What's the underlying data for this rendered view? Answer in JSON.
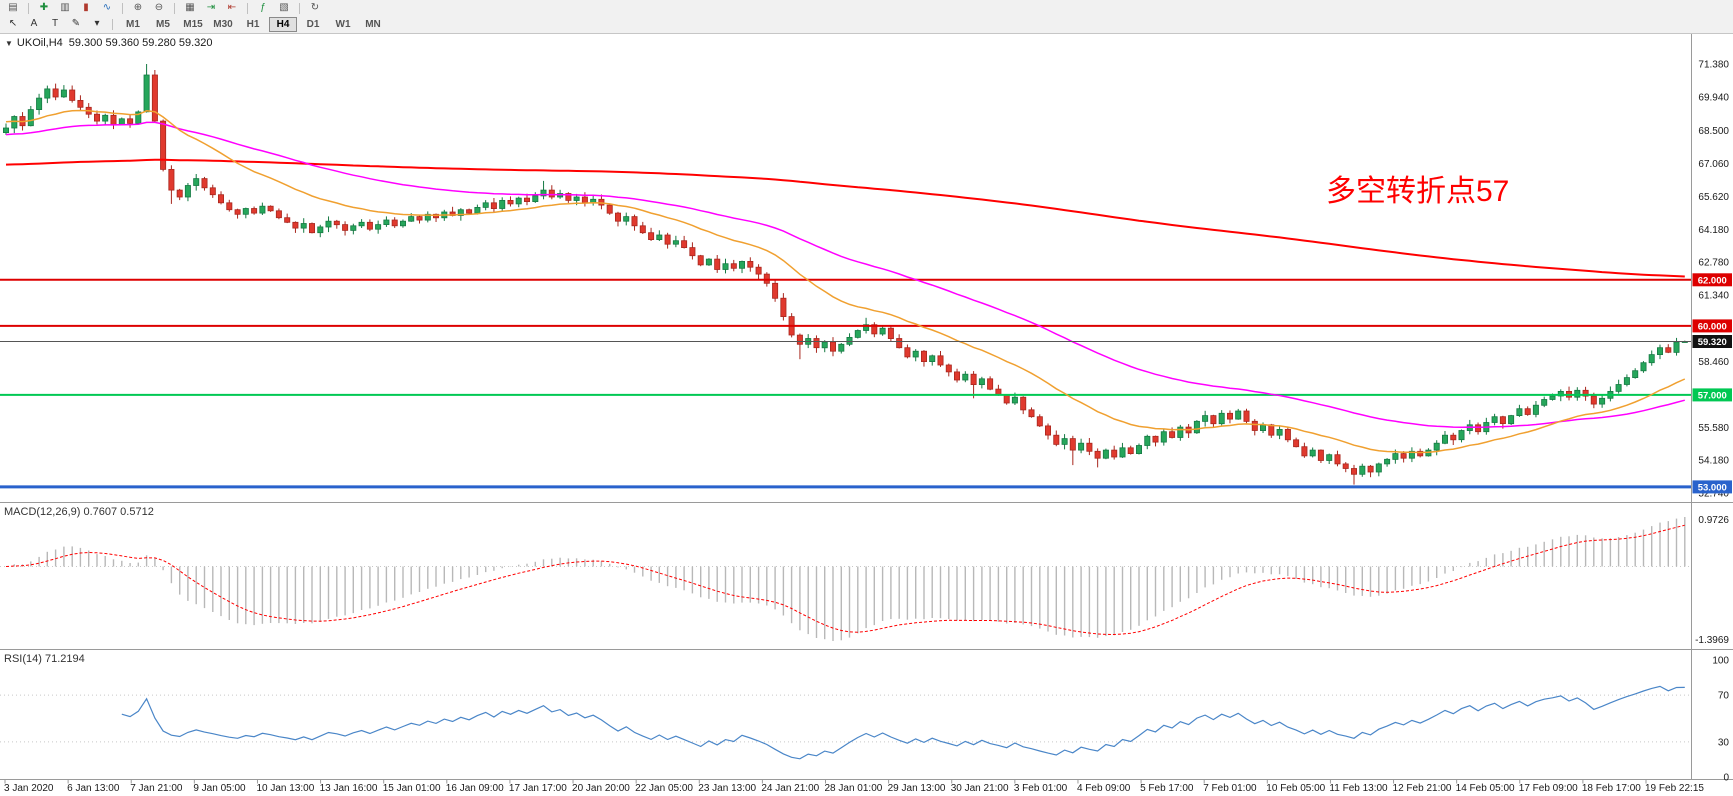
{
  "toolbar": {
    "row1_icons": [
      {
        "name": "chart-window-icon",
        "glyph": "▤",
        "color": "#555555"
      },
      {
        "type": "sep"
      },
      {
        "name": "new-order-icon",
        "glyph": "✚",
        "color": "#1e8e3e"
      },
      {
        "name": "chart-bars-icon",
        "glyph": "▥",
        "color": "#555555"
      },
      {
        "name": "chart-candles-icon",
        "glyph": "▮",
        "color": "#b03a2e"
      },
      {
        "name": "chart-line-icon",
        "glyph": "∿",
        "color": "#2a6fbb"
      },
      {
        "type": "sep"
      },
      {
        "name": "zoom-in-icon",
        "glyph": "⊕",
        "color": "#555555"
      },
      {
        "name": "zoom-out-icon",
        "glyph": "⊖",
        "color": "#555555"
      },
      {
        "type": "sep"
      },
      {
        "name": "tile-windows-icon",
        "glyph": "▦",
        "color": "#555555"
      },
      {
        "name": "auto-scroll-icon",
        "glyph": "⇥",
        "color": "#1e8e3e"
      },
      {
        "name": "chart-shift-icon",
        "glyph": "⇤",
        "color": "#b03a2e"
      },
      {
        "type": "sep"
      },
      {
        "name": "indicators-icon",
        "glyph": "ƒ",
        "color": "#1e8e3e"
      },
      {
        "name": "templates-icon",
        "glyph": "▧",
        "color": "#555555"
      },
      {
        "type": "sep"
      },
      {
        "name": "refresh-icon",
        "glyph": "↻",
        "color": "#555555"
      }
    ],
    "row2_tools": [
      {
        "name": "cursor-tool",
        "glyph": "↖",
        "color": "#333333"
      },
      {
        "name": "text-label-tool",
        "glyph": "A",
        "color": "#333333"
      },
      {
        "name": "text-tool",
        "glyph": "T",
        "color": "#333333"
      },
      {
        "name": "draw-tools",
        "glyph": "✎",
        "color": "#333333"
      },
      {
        "name": "draw-tools-dropdown-icon",
        "glyph": "▾",
        "color": "#333333"
      }
    ],
    "timeframes": {
      "items": [
        "M1",
        "M5",
        "M15",
        "M30",
        "H1",
        "H4",
        "D1",
        "W1",
        "MN"
      ],
      "active": "H4"
    }
  },
  "chart": {
    "symbol_period": "UKOil,H4",
    "ohlc_text": "59.300 59.360 59.280 59.320",
    "annotation": {
      "text": "多空转折点57",
      "color": "#ff0000"
    },
    "price_axis_labels": [
      "71.380",
      "69.940",
      "68.500",
      "67.060",
      "65.620",
      "64.180",
      "62.780",
      "61.340",
      "59.900",
      "58.460",
      "57.020",
      "55.580",
      "54.180",
      "52.740"
    ],
    "levels": [
      {
        "label": "62.000",
        "value": 62.0,
        "color": "#dd0000",
        "width": 2
      },
      {
        "label": "60.000",
        "value": 60.0,
        "color": "#dd0000",
        "width": 2
      },
      {
        "label": "57.000",
        "value": 57.0,
        "color": "#00c853",
        "width": 2
      },
      {
        "label": "53.000",
        "value": 53.0,
        "color": "#2962cc",
        "width": 3
      }
    ],
    "current_price": {
      "label": "59.320",
      "value": 59.32,
      "badge_color": "#111111"
    },
    "colors": {
      "up_fill": "#26a65b",
      "up_stroke": "#157a43",
      "down_fill": "#e0392e",
      "down_stroke": "#a8271e",
      "ma_slow": "#ff0000",
      "ma_medium": "#ff00ff",
      "ma_fast": "#f0a030",
      "macd_hist": "#b8b8b8",
      "macd_signal": "#ff0000",
      "rsi_line": "#4a86c8",
      "axis_text": "#1a1a1a",
      "separator": "#9a9a9a",
      "grid_dotted": "#c8c8c8"
    }
  },
  "chart_data": {
    "type": "candlestick",
    "title": "UKOil,H4",
    "x_axis_labels": [
      "3 Jan 2020",
      "6 Jan 13:00",
      "7 Jan 21:00",
      "9 Jan 05:00",
      "10 Jan 13:00",
      "13 Jan 16:00",
      "15 Jan 01:00",
      "16 Jan 09:00",
      "17 Jan 17:00",
      "20 Jan 20:00",
      "22 Jan 05:00",
      "23 Jan 13:00",
      "24 Jan 21:00",
      "28 Jan 01:00",
      "29 Jan 13:00",
      "30 Jan 21:00",
      "3 Feb 01:00",
      "4 Feb 09:00",
      "5 Feb 17:00",
      "7 Feb 01:00",
      "10 Feb 05:00",
      "11 Feb 13:00",
      "12 Feb 21:00",
      "14 Feb 05:00",
      "17 Feb 09:00",
      "18 Feb 17:00",
      "19 Feb 22:15"
    ],
    "y_range": [
      52.43,
      72.68
    ],
    "candles": {
      "first_open": 68.4,
      "closes": [
        68.6,
        69.1,
        68.7,
        69.4,
        69.9,
        70.3,
        69.95,
        70.25,
        69.8,
        69.5,
        69.2,
        68.9,
        69.15,
        68.75,
        69.0,
        68.8,
        69.3,
        70.9,
        68.9,
        66.8,
        65.9,
        65.6,
        66.1,
        66.4,
        66.0,
        65.7,
        65.35,
        65.05,
        64.85,
        65.1,
        64.9,
        65.2,
        65.0,
        64.7,
        64.5,
        64.25,
        64.45,
        64.05,
        64.3,
        64.55,
        64.4,
        64.15,
        64.35,
        64.5,
        64.2,
        64.4,
        64.6,
        64.35,
        64.55,
        64.75,
        64.6,
        64.85,
        64.7,
        64.95,
        64.8,
        65.05,
        64.9,
        65.15,
        65.35,
        65.1,
        65.45,
        65.3,
        65.55,
        65.4,
        65.65,
        65.9,
        65.6,
        65.75,
        65.45,
        65.6,
        65.35,
        65.5,
        65.25,
        64.9,
        64.55,
        64.75,
        64.35,
        64.05,
        63.75,
        63.95,
        63.55,
        63.7,
        63.4,
        63.05,
        62.65,
        62.9,
        62.45,
        62.7,
        62.5,
        62.8,
        62.55,
        62.25,
        61.85,
        61.2,
        60.4,
        59.6,
        59.2,
        59.45,
        59.05,
        59.3,
        58.9,
        59.2,
        59.5,
        59.8,
        60.05,
        59.65,
        59.9,
        59.45,
        59.05,
        58.65,
        58.9,
        58.45,
        58.7,
        58.3,
        58.0,
        57.65,
        57.9,
        57.45,
        57.7,
        57.25,
        57.0,
        56.65,
        56.9,
        56.35,
        56.05,
        55.65,
        55.25,
        54.85,
        55.1,
        54.6,
        54.9,
        54.55,
        54.25,
        54.6,
        54.3,
        54.7,
        54.45,
        54.8,
        55.2,
        54.95,
        55.4,
        55.15,
        55.6,
        55.35,
        55.85,
        56.1,
        55.75,
        56.2,
        55.95,
        56.3,
        55.85,
        55.45,
        55.7,
        55.25,
        55.5,
        55.05,
        54.75,
        54.35,
        54.6,
        54.15,
        54.4,
        54.0,
        53.8,
        53.55,
        53.9,
        53.65,
        54.0,
        54.2,
        54.45,
        54.25,
        54.55,
        54.35,
        54.6,
        54.9,
        55.25,
        55.05,
        55.45,
        55.7,
        55.4,
        55.8,
        56.05,
        55.75,
        56.1,
        56.4,
        56.15,
        56.55,
        56.8,
        56.95,
        57.15,
        56.9,
        57.2,
        56.95,
        56.6,
        56.85,
        57.15,
        57.45,
        57.75,
        58.05,
        58.4,
        58.75,
        59.05,
        58.85,
        59.3,
        59.32
      ],
      "overrides": {
        "17": {
          "h": 71.38
        },
        "20": {
          "l": 65.3
        },
        "65": {
          "h": 66.3
        },
        "96": {
          "l": 58.55
        },
        "104": {
          "h": 60.35
        },
        "117": {
          "l": 56.85
        },
        "129": {
          "l": 53.95
        },
        "132": {
          "l": 53.85
        },
        "163": {
          "l": 53.1
        },
        "203": {
          "h": 59.36,
          "l": 59.28
        }
      }
    },
    "moving_averages": [
      {
        "name": "ma-slow",
        "period": 400,
        "seed": 67.0,
        "color": "#ff0000",
        "width": 2
      },
      {
        "name": "ma-medium",
        "period": 55,
        "seed": 68.3,
        "color": "#ff00ff",
        "width": 1.5
      },
      {
        "name": "ma-fast",
        "period": 21,
        "seed": 68.9,
        "color": "#f0a030",
        "width": 1.5
      }
    ],
    "macd": {
      "label": "MACD(12,26,9) 0.7607 0.5712",
      "fast": 12,
      "slow": 26,
      "signal_period": 9,
      "current": 0.7607,
      "signal_current": 0.5712,
      "scale_labels": [
        "0.9726",
        "-1.3969"
      ],
      "scale_max": 0.9726,
      "scale_min": -1.3969
    },
    "rsi": {
      "label": "RSI(14) 71.2194",
      "period": 14,
      "current": 71.2194,
      "levels": [
        70,
        30
      ],
      "scale_labels": [
        "100",
        "70",
        "30",
        "0"
      ]
    }
  }
}
